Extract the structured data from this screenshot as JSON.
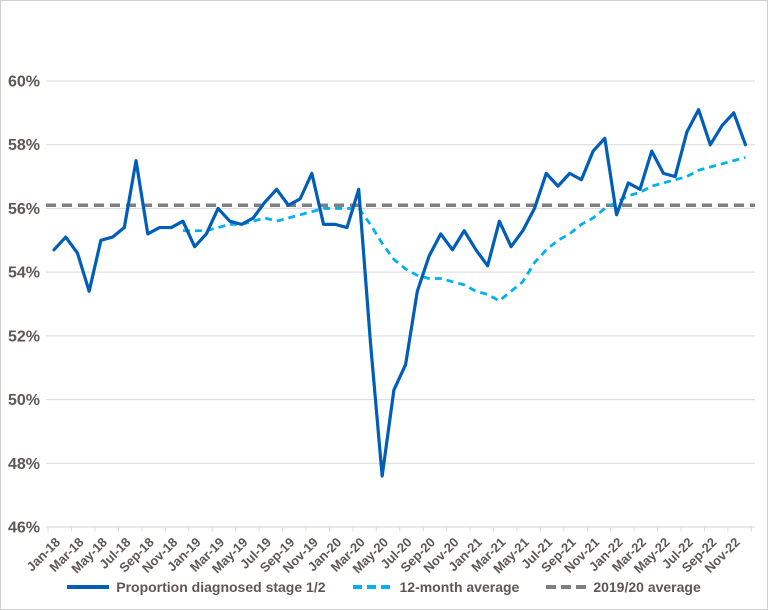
{
  "frame": {
    "background": "#ffffff",
    "border_color": "#cfcfcf"
  },
  "styles": {
    "grid_color": "#D9D9D9",
    "axis_text_color": "#5F5656",
    "proportion_color": "#005EB8",
    "rolling_avg_color": "#00B0F0",
    "reference_color": "#7F7F7F"
  },
  "legend": {
    "items": [
      {
        "label": "Proportion diagnosed stage 1/2",
        "swatch": "solid",
        "color": "#005EB8"
      },
      {
        "label": "12-month average",
        "swatch": "dashed",
        "color": "#00B0F0"
      },
      {
        "label": "2019/20 average",
        "swatch": "dashed",
        "color": "#7F7F7F"
      }
    ]
  },
  "chart_data": {
    "type": "line",
    "title": "",
    "xlabel": "",
    "ylabel": "",
    "ylim": [
      46,
      60
    ],
    "grid": "horizontal",
    "legend_position": "bottom",
    "y_tick_values": [
      46,
      48,
      50,
      52,
      54,
      56,
      58,
      60
    ],
    "y_tick_labels": [
      "46%",
      "48%",
      "50%",
      "52%",
      "54%",
      "56%",
      "58%",
      "60%"
    ],
    "x_categories": [
      "Jan-18",
      "Feb-18",
      "Mar-18",
      "Apr-18",
      "May-18",
      "Jun-18",
      "Jul-18",
      "Aug-18",
      "Sep-18",
      "Oct-18",
      "Nov-18",
      "Dec-18",
      "Jan-19",
      "Feb-19",
      "Mar-19",
      "Apr-19",
      "May-19",
      "Jun-19",
      "Jul-19",
      "Aug-19",
      "Sep-19",
      "Oct-19",
      "Nov-19",
      "Dec-19",
      "Jan-20",
      "Feb-20",
      "Mar-20",
      "Apr-20",
      "May-20",
      "Jun-20",
      "Jul-20",
      "Aug-20",
      "Sep-20",
      "Oct-20",
      "Nov-20",
      "Dec-20",
      "Jan-21",
      "Feb-21",
      "Mar-21",
      "Apr-21",
      "May-21",
      "Jun-21",
      "Jul-21",
      "Aug-21",
      "Sep-21",
      "Oct-21",
      "Nov-21",
      "Dec-21",
      "Jan-22",
      "Feb-22",
      "Mar-22",
      "Apr-22",
      "May-22",
      "Jun-22",
      "Jul-22",
      "Aug-22",
      "Sep-22",
      "Oct-22",
      "Nov-22",
      "Dec-22"
    ],
    "x_tick_labels": [
      "Jan-18",
      "Mar-18",
      "May-18",
      "Jul-18",
      "Sep-18",
      "Nov-18",
      "Jan-19",
      "Mar-19",
      "May-19",
      "Jul-19",
      "Sep-19",
      "Nov-19",
      "Jan-20",
      "Mar-20",
      "May-20",
      "Jul-20",
      "Sep-20",
      "Nov-20",
      "Jan-21",
      "Mar-21",
      "May-21",
      "Jul-21",
      "Sep-21",
      "Nov-21",
      "Jan-22",
      "Mar-22",
      "May-22",
      "Jul-22",
      "Sep-22",
      "Nov-22"
    ],
    "series": [
      {
        "name": "Proportion diagnosed stage 1/2",
        "style": "solid",
        "color": "#005EB8",
        "start_index": 0,
        "values": [
          54.7,
          55.1,
          54.6,
          53.4,
          55.0,
          55.1,
          55.4,
          57.5,
          55.2,
          55.4,
          55.4,
          55.6,
          54.8,
          55.2,
          56.0,
          55.6,
          55.5,
          55.7,
          56.2,
          56.6,
          56.1,
          56.3,
          57.1,
          55.5,
          55.5,
          55.4,
          56.6,
          51.8,
          47.6,
          50.3,
          51.1,
          53.4,
          54.5,
          55.2,
          54.7,
          55.3,
          54.7,
          54.2,
          55.6,
          54.8,
          55.3,
          56.0,
          57.1,
          56.7,
          57.1,
          56.9,
          57.8,
          58.2,
          55.8,
          56.8,
          56.6,
          57.8,
          57.1,
          57.0,
          58.4,
          59.1,
          58.0,
          58.6,
          59.0,
          58.0
        ]
      },
      {
        "name": "12-month average",
        "style": "dashed",
        "color": "#00B0F0",
        "start_index": 11,
        "values": [
          55.3,
          55.3,
          55.3,
          55.4,
          55.5,
          55.5,
          55.6,
          55.7,
          55.6,
          55.7,
          55.8,
          55.9,
          56.0,
          56.0,
          56.0,
          56.0,
          55.5,
          54.9,
          54.4,
          54.1,
          53.9,
          53.8,
          53.8,
          53.7,
          53.6,
          53.4,
          53.3,
          53.1,
          53.4,
          53.7,
          54.3,
          54.7,
          55.0,
          55.2,
          55.5,
          55.7,
          56.0,
          56.2,
          56.4,
          56.5,
          56.7,
          56.8,
          56.9,
          57.0,
          57.2,
          57.3,
          57.4,
          57.5,
          57.6
        ]
      },
      {
        "name": "2019/20 average",
        "style": "dashed-reference",
        "color": "#7F7F7F",
        "value": 56.1
      }
    ]
  }
}
